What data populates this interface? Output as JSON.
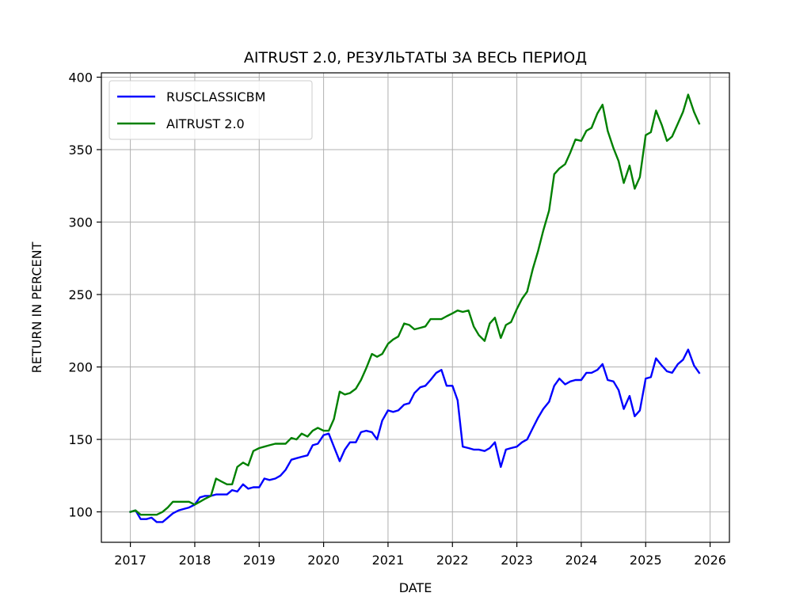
{
  "chart_data": {
    "type": "line",
    "title": "AITRUST 2.0, РЕЗУЛЬТАТЫ ЗА ВЕСЬ ПЕРИОД",
    "xlabel": "DATE",
    "ylabel": "RETURN IN PERCENT",
    "xlim": [
      2016.55,
      2026.3
    ],
    "ylim": [
      79,
      403
    ],
    "x_ticks": [
      2017,
      2018,
      2019,
      2020,
      2021,
      2022,
      2023,
      2024,
      2025,
      2026
    ],
    "x_tick_labels": [
      "2017",
      "2018",
      "2019",
      "2020",
      "2021",
      "2022",
      "2023",
      "2024",
      "2025",
      "2026"
    ],
    "y_ticks": [
      100,
      150,
      200,
      250,
      300,
      350,
      400
    ],
    "y_tick_labels": [
      "100",
      "150",
      "200",
      "250",
      "300",
      "350",
      "400"
    ],
    "grid": true,
    "legend_position": "upper-left",
    "series": [
      {
        "name": "RUSCLASSICBM",
        "color": "#0000ff",
        "x": [
          2017.0,
          2017.08,
          2017.16,
          2017.25,
          2017.33,
          2017.41,
          2017.5,
          2017.58,
          2017.66,
          2017.75,
          2017.83,
          2017.91,
          2018.0,
          2018.08,
          2018.16,
          2018.25,
          2018.33,
          2018.41,
          2018.5,
          2018.58,
          2018.66,
          2018.75,
          2018.83,
          2018.91,
          2019.0,
          2019.08,
          2019.16,
          2019.25,
          2019.33,
          2019.41,
          2019.5,
          2019.58,
          2019.66,
          2019.75,
          2019.83,
          2019.91,
          2020.0,
          2020.08,
          2020.16,
          2020.25,
          2020.33,
          2020.41,
          2020.5,
          2020.58,
          2020.66,
          2020.75,
          2020.83,
          2020.91,
          2021.0,
          2021.08,
          2021.16,
          2021.25,
          2021.33,
          2021.41,
          2021.5,
          2021.58,
          2021.66,
          2021.75,
          2021.83,
          2021.91,
          2022.0,
          2022.08,
          2022.16,
          2022.25,
          2022.33,
          2022.41,
          2022.5,
          2022.58,
          2022.66,
          2022.75,
          2022.83,
          2022.91,
          2023.0,
          2023.08,
          2023.16,
          2023.25,
          2023.33,
          2023.41,
          2023.5,
          2023.58,
          2023.66,
          2023.75,
          2023.83,
          2023.91,
          2024.0,
          2024.08,
          2024.16,
          2024.25,
          2024.33,
          2024.41,
          2024.5,
          2024.58,
          2024.66,
          2024.75,
          2024.83,
          2024.91,
          2025.0,
          2025.08,
          2025.16,
          2025.25,
          2025.33,
          2025.41,
          2025.5,
          2025.58,
          2025.66,
          2025.75,
          2025.83
        ],
        "values": [
          100,
          101,
          95,
          95,
          96,
          93,
          93,
          96,
          99,
          101,
          102,
          103,
          105,
          110,
          111,
          111,
          112,
          112,
          112,
          115,
          114,
          119,
          116,
          117,
          117,
          123,
          122,
          123,
          125,
          129,
          136,
          137,
          138,
          139,
          146,
          147,
          153,
          154,
          145,
          135,
          143,
          148,
          148,
          155,
          156,
          155,
          150,
          163,
          170,
          169,
          170,
          174,
          175,
          182,
          186,
          187,
          191,
          196,
          198,
          187,
          187,
          177,
          145,
          144,
          143,
          143,
          142,
          144,
          148,
          131,
          143,
          144,
          145,
          148,
          150,
          158,
          165,
          171,
          176,
          187,
          192,
          188,
          190,
          191,
          191,
          196,
          196,
          198,
          202,
          191,
          190,
          184,
          171,
          180,
          166,
          170,
          192,
          193,
          206,
          201,
          197,
          196,
          202,
          205,
          212,
          201,
          196
        ]
      },
      {
        "name": "AITRUST 2.0",
        "color": "#008000",
        "x": [
          2017.0,
          2017.08,
          2017.16,
          2017.25,
          2017.33,
          2017.41,
          2017.5,
          2017.58,
          2017.66,
          2017.75,
          2017.83,
          2017.91,
          2018.0,
          2018.08,
          2018.16,
          2018.25,
          2018.33,
          2018.41,
          2018.5,
          2018.58,
          2018.66,
          2018.75,
          2018.83,
          2018.91,
          2019.0,
          2019.08,
          2019.16,
          2019.25,
          2019.33,
          2019.41,
          2019.5,
          2019.58,
          2019.66,
          2019.75,
          2019.83,
          2019.91,
          2020.0,
          2020.08,
          2020.16,
          2020.25,
          2020.33,
          2020.41,
          2020.5,
          2020.58,
          2020.66,
          2020.75,
          2020.83,
          2020.91,
          2021.0,
          2021.08,
          2021.16,
          2021.25,
          2021.33,
          2021.41,
          2021.5,
          2021.58,
          2021.66,
          2021.75,
          2021.83,
          2021.91,
          2022.0,
          2022.08,
          2022.16,
          2022.25,
          2022.33,
          2022.41,
          2022.5,
          2022.58,
          2022.66,
          2022.75,
          2022.83,
          2022.91,
          2023.0,
          2023.08,
          2023.16,
          2023.25,
          2023.33,
          2023.41,
          2023.5,
          2023.58,
          2023.66,
          2023.75,
          2023.83,
          2023.91,
          2024.0,
          2024.08,
          2024.16,
          2024.25,
          2024.33,
          2024.41,
          2024.5,
          2024.58,
          2024.66,
          2024.75,
          2024.83,
          2024.91,
          2025.0,
          2025.08,
          2025.16,
          2025.25,
          2025.33,
          2025.41,
          2025.5,
          2025.58,
          2025.66,
          2025.75,
          2025.83
        ],
        "values": [
          100,
          101,
          98,
          98,
          98,
          98,
          100,
          103,
          107,
          107,
          107,
          107,
          105,
          107,
          109,
          111,
          123,
          121,
          119,
          119,
          131,
          134,
          132,
          142,
          144,
          145,
          146,
          147,
          147,
          147,
          151,
          150,
          154,
          152,
          156,
          158,
          156,
          156,
          164,
          183,
          181,
          182,
          185,
          191,
          199,
          209,
          207,
          209,
          216,
          219,
          221,
          230,
          229,
          226,
          227,
          228,
          233,
          233,
          233,
          235,
          237,
          239,
          238,
          239,
          228,
          222,
          218,
          230,
          234,
          220,
          229,
          231,
          240,
          247,
          252,
          268,
          280,
          294,
          308,
          333,
          337,
          340,
          348,
          357,
          356,
          363,
          365,
          375,
          381,
          363,
          351,
          342,
          327,
          339,
          323,
          331,
          360,
          362,
          377,
          367,
          356,
          359,
          368,
          376,
          388,
          376,
          368
        ]
      }
    ]
  }
}
